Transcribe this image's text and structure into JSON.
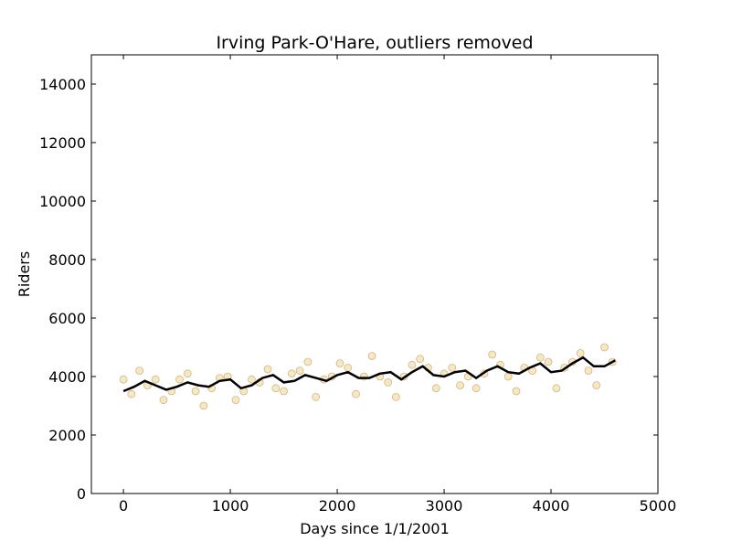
{
  "chart_data": {
    "type": "scatter",
    "title": "Irving Park-O'Hare, outliers removed",
    "x_label": "Days since 1/1/2001",
    "y_label": "Riders",
    "xlim": [
      -300,
      5000
    ],
    "xticks": [
      0,
      1000,
      2000,
      3000,
      4000,
      5000
    ],
    "ylim": [
      0,
      15000
    ],
    "yticks": [
      0,
      2000,
      4000,
      6000,
      8000,
      10000,
      12000,
      14000
    ],
    "series": [
      {
        "type": "scatter",
        "color": "#e69f00",
        "x": [
          0,
          75,
          150,
          225,
          300,
          375,
          450,
          525,
          600,
          675,
          750,
          825,
          900,
          975,
          1050,
          1125,
          1200,
          1275,
          1350,
          1425,
          1500,
          1575,
          1650,
          1725,
          1800,
          1875,
          1950,
          2025,
          2100,
          2175,
          2250,
          2325,
          2400,
          2475,
          2550,
          2625,
          2700,
          2775,
          2850,
          2925,
          3000,
          3075,
          3150,
          3225,
          3300,
          3375,
          3450,
          3525,
          3600,
          3675,
          3750,
          3825,
          3900,
          3975,
          4050,
          4125,
          4200,
          4275,
          4350,
          4425,
          4500,
          4575
        ],
        "values": [
          3900,
          3400,
          4200,
          3700,
          3900,
          3200,
          3500,
          3900,
          4100,
          3500,
          3000,
          3600,
          3950,
          4000,
          3200,
          3500,
          3900,
          3800,
          4250,
          3600,
          3500,
          4100,
          4200,
          4500,
          3300,
          3900,
          4000,
          4450,
          4300,
          3400,
          4000,
          4700,
          4000,
          3800,
          3300,
          4000,
          4400,
          4600,
          4300,
          3600,
          4100,
          4300,
          3700,
          4000,
          3600,
          4100,
          4750,
          4400,
          4000,
          3500,
          4300,
          4200,
          4650,
          4500,
          3600,
          4300,
          4500,
          4800,
          4200,
          3700,
          5000,
          4500
        ]
      },
      {
        "type": "line",
        "color": "#000000",
        "x": [
          0,
          100,
          200,
          300,
          400,
          500,
          600,
          700,
          800,
          900,
          1000,
          1100,
          1200,
          1300,
          1400,
          1500,
          1600,
          1700,
          1800,
          1900,
          2000,
          2100,
          2200,
          2300,
          2400,
          2500,
          2600,
          2700,
          2800,
          2900,
          3000,
          3100,
          3200,
          3300,
          3400,
          3500,
          3600,
          3700,
          3800,
          3900,
          4000,
          4100,
          4200,
          4300,
          4400,
          4500,
          4600
        ],
        "values": [
          3500,
          3650,
          3850,
          3700,
          3550,
          3650,
          3800,
          3700,
          3650,
          3850,
          3900,
          3600,
          3700,
          3950,
          4050,
          3800,
          3850,
          4050,
          3950,
          3850,
          4050,
          4150,
          3950,
          3950,
          4100,
          4150,
          3900,
          4150,
          4350,
          4050,
          4000,
          4150,
          4200,
          3950,
          4200,
          4350,
          4150,
          4100,
          4300,
          4450,
          4150,
          4200,
          4450,
          4650,
          4350,
          4350,
          4550
        ]
      }
    ]
  }
}
